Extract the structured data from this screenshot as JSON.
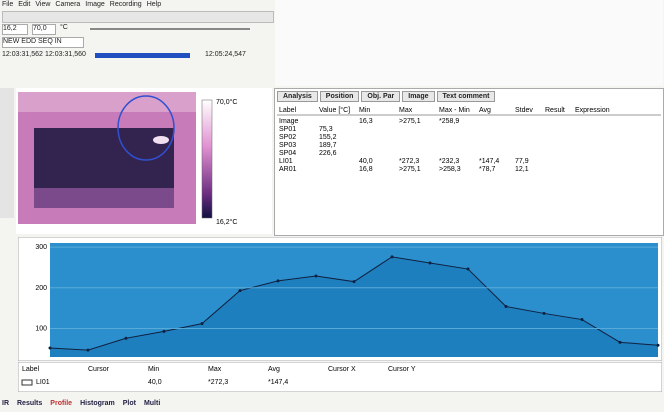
{
  "menu": [
    "File",
    "Edit",
    "View",
    "Camera",
    "Image",
    "Recording",
    "Help"
  ],
  "range": {
    "low": "16,2",
    "high": "70,0",
    "unit": "°C"
  },
  "sequence": "NEW EDD SEQ IN",
  "times": [
    "12:03:31,562",
    "12:03:31,560",
    "12:05:24,547"
  ],
  "image_scale": {
    "max": "70,0°C",
    "min": "16,2°C"
  },
  "analysis": {
    "tabs": [
      "Analysis",
      "Position",
      "Obj. Par",
      "Image",
      "Text comment"
    ],
    "header": [
      "Label",
      "Value [°C]",
      "Min",
      "Max",
      "Max - Min",
      "Avg",
      "Stdev",
      "Result",
      "Expression"
    ],
    "rows": [
      [
        "Image",
        "",
        "16,3",
        ">275,1",
        "*258,9"
      ],
      [
        "SP01",
        "75,3"
      ],
      [
        "SP02",
        "155,2"
      ],
      [
        "SP03",
        "189,7"
      ],
      [
        "SP04",
        "226,6"
      ],
      [
        "LI01",
        "",
        "40,0",
        "*272,3",
        "*232,3",
        "*147,4",
        "77,9"
      ],
      [
        "AR01",
        "",
        "16,8",
        ">275,1",
        ">258,3",
        "*78,7",
        "12,1"
      ]
    ]
  },
  "profile": {
    "values": [
      52,
      47,
      76,
      93,
      112,
      193,
      217,
      229,
      215,
      276,
      261,
      246,
      154,
      137,
      122,
      66,
      59
    ],
    "ylim": [
      30,
      310
    ],
    "yticks": [
      100,
      200,
      300
    ],
    "color": "#1e7fbf"
  },
  "profile_table": {
    "header": [
      "Label",
      "Cursor",
      "Min",
      "Max",
      "Avg",
      "Cursor X",
      "Cursor Y"
    ],
    "row": [
      "LI01",
      "",
      "40,0",
      "*272,3",
      "*147,4"
    ]
  },
  "bottom_tabs": [
    "IR",
    "Results",
    "Profile",
    "Histogram",
    "Plot",
    "Multi"
  ]
}
